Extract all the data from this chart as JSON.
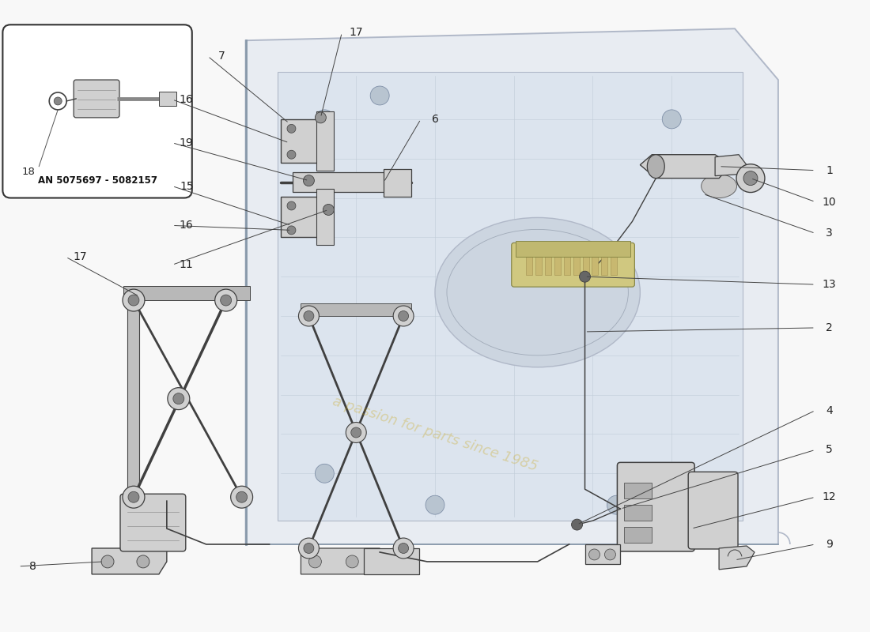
{
  "background_color": "#f8f8f8",
  "door_outline_color": "#b0b8c8",
  "door_fill_color": "#e8ecf2",
  "door_inner_color": "#d8dfe8",
  "part_line_color": "#404040",
  "part_fill_color": "#d0d0d0",
  "part_fill_dark": "#a0a0a0",
  "callout_color": "#222222",
  "callout_line_color": "#444444",
  "inset_label": "AN 5075697 - 5082157",
  "watermark_text": "a passion for parts since 1985",
  "watermark_color": "#c8a000",
  "watermark_alpha": 0.3,
  "wm_rotation": -18
}
